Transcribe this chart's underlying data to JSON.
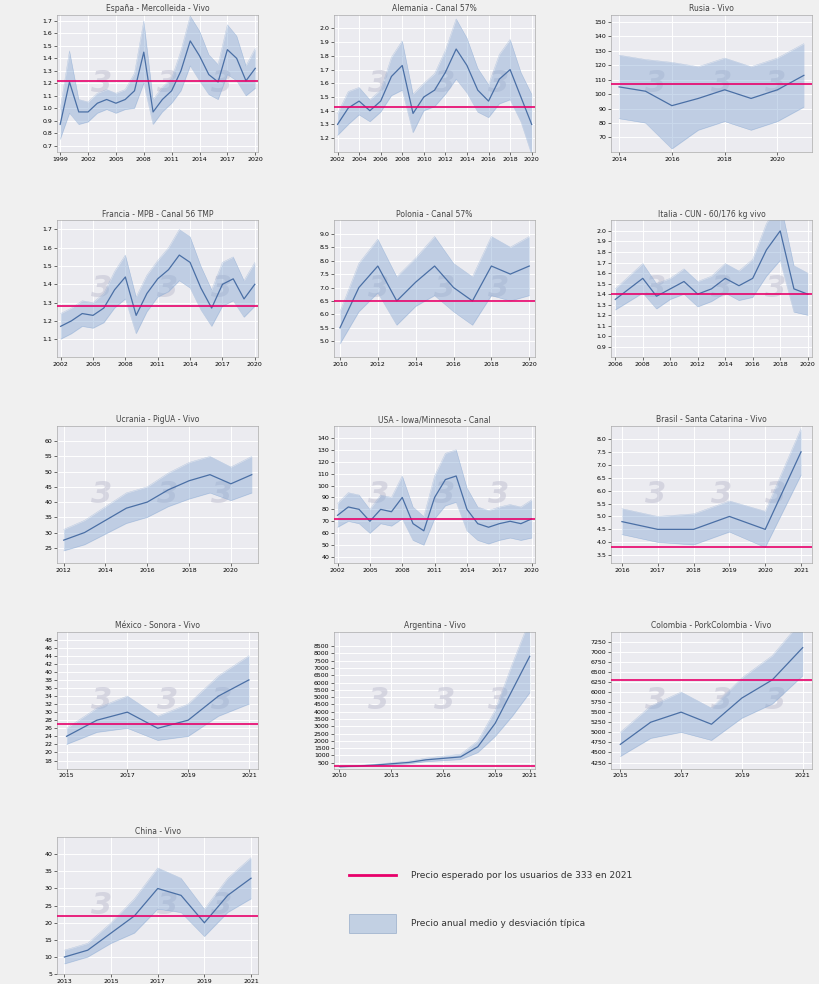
{
  "subplots": [
    {
      "title": "España - Mercolleida - Vivo",
      "years": [
        1999,
        2000,
        2001,
        2002,
        2003,
        2004,
        2005,
        2006,
        2007,
        2008,
        2009,
        2010,
        2011,
        2012,
        2013,
        2014,
        2015,
        2016,
        2017,
        2018,
        2019,
        2020
      ],
      "mean": [
        0.87,
        1.21,
        0.97,
        0.97,
        1.04,
        1.07,
        1.04,
        1.07,
        1.14,
        1.45,
        0.97,
        1.07,
        1.14,
        1.3,
        1.54,
        1.42,
        1.27,
        1.21,
        1.47,
        1.4,
        1.22,
        1.32
      ],
      "std": [
        0.12,
        0.25,
        0.1,
        0.08,
        0.08,
        0.08,
        0.08,
        0.08,
        0.14,
        0.25,
        0.1,
        0.1,
        0.1,
        0.16,
        0.2,
        0.2,
        0.16,
        0.14,
        0.2,
        0.18,
        0.12,
        0.16
      ],
      "prediction": 1.22,
      "ylim": [
        0.65,
        1.75
      ],
      "xticks": [
        1999,
        2002,
        2005,
        2008,
        2011,
        2014,
        2017,
        2020
      ],
      "yticks": [
        0.7,
        0.8,
        0.9,
        1.0,
        1.1,
        1.2,
        1.3,
        1.4,
        1.5,
        1.6,
        1.7
      ]
    },
    {
      "title": "Alemania - Canal 57%",
      "years": [
        2002,
        2003,
        2004,
        2005,
        2006,
        2007,
        2008,
        2009,
        2010,
        2011,
        2012,
        2013,
        2014,
        2015,
        2016,
        2017,
        2018,
        2019,
        2020
      ],
      "mean": [
        1.3,
        1.42,
        1.47,
        1.4,
        1.47,
        1.65,
        1.73,
        1.38,
        1.5,
        1.55,
        1.68,
        1.85,
        1.73,
        1.55,
        1.47,
        1.63,
        1.7,
        1.5,
        1.3
      ],
      "std": [
        0.08,
        0.12,
        0.1,
        0.08,
        0.08,
        0.14,
        0.18,
        0.14,
        0.1,
        0.12,
        0.16,
        0.22,
        0.2,
        0.16,
        0.12,
        0.18,
        0.22,
        0.18,
        0.22
      ],
      "prediction": 1.43,
      "ylim": [
        1.1,
        2.1
      ],
      "xticks": [
        2002,
        2004,
        2006,
        2008,
        2010,
        2012,
        2014,
        2016,
        2018,
        2020
      ],
      "yticks": [
        1.2,
        1.3,
        1.4,
        1.5,
        1.6,
        1.7,
        1.8,
        1.9,
        2.0
      ]
    },
    {
      "title": "Rusia - Vivo",
      "years": [
        2014,
        2015,
        2016,
        2017,
        2018,
        2019,
        2020,
        2021
      ],
      "mean": [
        105,
        102,
        92,
        97,
        103,
        97,
        103,
        113
      ],
      "std": [
        22,
        22,
        30,
        22,
        22,
        22,
        22,
        22
      ],
      "prediction": 107,
      "ylim": [
        60,
        155
      ],
      "xticks": [
        2014,
        2016,
        2018,
        2020
      ],
      "yticks": [
        70,
        80,
        90,
        100,
        110,
        120,
        130,
        140,
        150
      ]
    },
    {
      "title": "Francia - MPB - Canal 56 TMP",
      "years": [
        2002,
        2003,
        2004,
        2005,
        2006,
        2007,
        2008,
        2009,
        2010,
        2011,
        2012,
        2013,
        2014,
        2015,
        2016,
        2017,
        2018,
        2019,
        2020
      ],
      "mean": [
        1.17,
        1.2,
        1.24,
        1.23,
        1.27,
        1.37,
        1.44,
        1.23,
        1.35,
        1.43,
        1.48,
        1.56,
        1.52,
        1.38,
        1.27,
        1.4,
        1.43,
        1.32,
        1.4
      ],
      "std": [
        0.07,
        0.07,
        0.07,
        0.07,
        0.08,
        0.1,
        0.12,
        0.1,
        0.1,
        0.1,
        0.12,
        0.14,
        0.14,
        0.12,
        0.1,
        0.12,
        0.12,
        0.1,
        0.12
      ],
      "prediction": 1.28,
      "ylim": [
        1.0,
        1.75
      ],
      "xticks": [
        2002,
        2005,
        2008,
        2011,
        2014,
        2017,
        2020
      ],
      "yticks": [
        1.1,
        1.2,
        1.3,
        1.4,
        1.5,
        1.6,
        1.7
      ]
    },
    {
      "title": "Polonia - Canal 57%",
      "years": [
        2010,
        2011,
        2012,
        2013,
        2014,
        2015,
        2016,
        2017,
        2018,
        2019,
        2020
      ],
      "mean": [
        5.5,
        7.0,
        7.8,
        6.5,
        7.2,
        7.8,
        7.0,
        6.5,
        7.8,
        7.5,
        7.8
      ],
      "std": [
        0.6,
        0.9,
        1.0,
        0.9,
        0.9,
        1.1,
        0.9,
        0.9,
        1.1,
        1.0,
        1.1
      ],
      "prediction": 6.5,
      "ylim": [
        4.4,
        9.5
      ],
      "xticks": [
        2010,
        2012,
        2014,
        2016,
        2018,
        2020
      ],
      "yticks": [
        5.0,
        5.5,
        6.0,
        6.5,
        7.0,
        7.5,
        8.0,
        8.5,
        9.0
      ]
    },
    {
      "title": "Italia - CUN - 60/176 kg vivo",
      "years": [
        2006,
        2007,
        2008,
        2009,
        2010,
        2011,
        2012,
        2013,
        2014,
        2015,
        2016,
        2017,
        2018,
        2019,
        2020
      ],
      "mean": [
        1.35,
        1.45,
        1.55,
        1.38,
        1.45,
        1.52,
        1.4,
        1.45,
        1.55,
        1.48,
        1.55,
        1.82,
        2.0,
        1.45,
        1.4
      ],
      "std": [
        0.1,
        0.12,
        0.14,
        0.12,
        0.1,
        0.12,
        0.12,
        0.12,
        0.14,
        0.14,
        0.18,
        0.25,
        0.28,
        0.22,
        0.2
      ],
      "prediction": 1.4,
      "ylim": [
        0.8,
        2.1
      ],
      "xticks": [
        2006,
        2008,
        2010,
        2012,
        2014,
        2016,
        2018,
        2020
      ],
      "yticks": [
        0.9,
        1.0,
        1.1,
        1.2,
        1.3,
        1.4,
        1.5,
        1.6,
        1.7,
        1.8,
        1.9,
        2.0
      ]
    },
    {
      "title": "Ucrania - PigUA - Vivo",
      "years": [
        2012,
        2013,
        2014,
        2015,
        2016,
        2017,
        2018,
        2019,
        2020,
        2021
      ],
      "mean": [
        27.5,
        30.0,
        34.0,
        38.0,
        40.0,
        44.0,
        47.0,
        49.0,
        46.0,
        49.0
      ],
      "std": [
        3.5,
        4.0,
        4.5,
        5.0,
        5.0,
        5.5,
        6.0,
        6.0,
        5.5,
        6.0
      ],
      "prediction": null,
      "ylim": [
        20,
        65
      ],
      "xticks": [
        2012,
        2014,
        2016,
        2018,
        2020
      ],
      "yticks": [
        25,
        30,
        35,
        40,
        45,
        50,
        55,
        60
      ]
    },
    {
      "title": "USA - Iowa/Minnesota - Canal",
      "years": [
        2002,
        2003,
        2004,
        2005,
        2006,
        2007,
        2008,
        2009,
        2010,
        2011,
        2012,
        2013,
        2014,
        2015,
        2016,
        2017,
        2018,
        2019,
        2020
      ],
      "mean": [
        75,
        82,
        80,
        70,
        80,
        78,
        90,
        68,
        62,
        90,
        105,
        108,
        80,
        68,
        65,
        68,
        70,
        68,
        72
      ],
      "std": [
        10,
        12,
        12,
        10,
        12,
        12,
        18,
        14,
        12,
        18,
        22,
        22,
        18,
        14,
        14,
        14,
        14,
        14,
        16
      ],
      "prediction": 72,
      "ylim": [
        35,
        150
      ],
      "xticks": [
        2002,
        2005,
        2008,
        2011,
        2014,
        2017,
        2020
      ],
      "yticks": [
        40,
        50,
        60,
        70,
        80,
        90,
        100,
        110,
        120,
        130,
        140
      ]
    },
    {
      "title": "Brasil - Santa Catarina - Vivo",
      "years": [
        2016,
        2017,
        2018,
        2019,
        2020,
        2021
      ],
      "mean": [
        4.8,
        4.5,
        4.5,
        5.0,
        4.5,
        7.5
      ],
      "std": [
        0.5,
        0.5,
        0.6,
        0.6,
        0.7,
        0.9
      ],
      "prediction": 3.8,
      "ylim": [
        3.2,
        8.5
      ],
      "xticks": [
        2016,
        2017,
        2018,
        2019,
        2020,
        2021
      ],
      "yticks": [
        3.5,
        4.0,
        4.5,
        5.0,
        5.5,
        6.0,
        6.5,
        7.0,
        7.5,
        8.0
      ]
    },
    {
      "title": "México - Sonora - Vivo",
      "years": [
        2015,
        2016,
        2017,
        2018,
        2019,
        2020,
        2021
      ],
      "mean": [
        24,
        28,
        30,
        26,
        28,
        34,
        38
      ],
      "std": [
        2,
        3,
        4,
        3,
        4,
        5,
        6
      ],
      "prediction": 27,
      "ylim": [
        16,
        50
      ],
      "xticks": [
        2015,
        2017,
        2019,
        2021
      ],
      "yticks": [
        18,
        20,
        22,
        24,
        26,
        28,
        30,
        32,
        34,
        36,
        38,
        40,
        42,
        44,
        46,
        48
      ]
    },
    {
      "title": "Argentina - Vivo",
      "years": [
        2010,
        2011,
        2012,
        2013,
        2014,
        2015,
        2016,
        2017,
        2018,
        2019,
        2020,
        2021
      ],
      "mean": [
        230,
        270,
        340,
        430,
        520,
        700,
        800,
        900,
        1600,
        3200,
        5500,
        7800
      ],
      "std": [
        30,
        40,
        55,
        70,
        90,
        120,
        150,
        180,
        400,
        900,
        1800,
        2500
      ],
      "prediction": 275,
      "ylim": [
        100,
        9500
      ],
      "xticks": [
        2010,
        2013,
        2016,
        2019,
        2021
      ],
      "yticks": [
        500,
        1000,
        1500,
        2000,
        2500,
        3000,
        3500,
        4000,
        4500,
        5000,
        5500,
        6000,
        6500,
        7000,
        7500,
        8000,
        8500
      ]
    },
    {
      "title": "Colombia - PorkColombia - Vivo",
      "years": [
        2015,
        2016,
        2017,
        2018,
        2019,
        2020,
        2021
      ],
      "mean": [
        4700,
        5250,
        5500,
        5200,
        5850,
        6300,
        7100
      ],
      "std": [
        300,
        400,
        500,
        400,
        500,
        600,
        700
      ],
      "prediction": 6300,
      "ylim": [
        4100,
        7500
      ],
      "xticks": [
        2015,
        2017,
        2019,
        2021
      ],
      "yticks": [
        4250,
        4500,
        4750,
        5000,
        5250,
        5500,
        5750,
        6000,
        6250,
        6500,
        6750,
        7000,
        7250
      ]
    },
    {
      "title": "China - Vivo",
      "years": [
        2013,
        2014,
        2015,
        2016,
        2017,
        2018,
        2019,
        2020,
        2021
      ],
      "mean": [
        10,
        12,
        17,
        22,
        30,
        28,
        20,
        28,
        33
      ],
      "std": [
        2,
        2,
        3,
        5,
        6,
        5,
        4,
        5,
        6
      ],
      "prediction": 22,
      "ylim": [
        5,
        45
      ],
      "xticks": [
        2013,
        2015,
        2017,
        2019,
        2021
      ],
      "yticks": [
        5,
        10,
        15,
        20,
        25,
        30,
        35,
        40
      ]
    }
  ],
  "line_color": "#4a6fa5",
  "fill_color": "#8aaad4",
  "fill_alpha": 0.45,
  "prediction_color": "#e8006a",
  "bg_color": "#ebebf0",
  "watermark_color": "#c5c5d5",
  "legend_label_prediction": "Precio esperado por los usuarios de 333 en 2021",
  "legend_label_band": "Precio anual medio y desviación típica"
}
